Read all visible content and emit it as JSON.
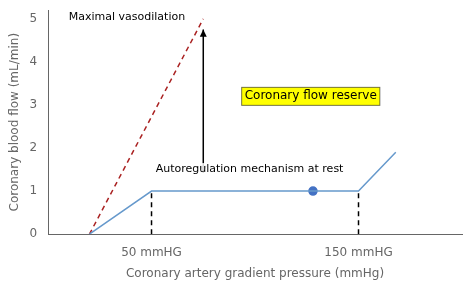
{
  "chart_data": {
    "type": "line",
    "xlabel": "Coronary artery gradient pressure (mmHg)",
    "ylabel": "Coronary blood flow (mL/min)",
    "xlim": [
      0,
      200
    ],
    "ylim": [
      0,
      5.2
    ],
    "xticks": [
      {
        "value": 50,
        "label": "50 mmHG"
      },
      {
        "value": 150,
        "label": "150 mmHG"
      }
    ],
    "yticks": [
      0,
      1,
      2,
      3,
      4,
      5
    ],
    "grid": false,
    "series": [
      {
        "x": [
          20,
          50,
          150,
          168
        ],
        "values": [
          0,
          1.0,
          1.0,
          1.9
        ],
        "color": "#6699cc",
        "line_style": "solid"
      },
      {
        "x": [
          20,
          75
        ],
        "values": [
          0,
          5.0
        ],
        "color": "#aa2222",
        "line_style": "dashed"
      },
      {
        "x": [
          50,
          50
        ],
        "values": [
          0,
          1.0
        ],
        "color": "#000000",
        "line_style": "dashed"
      },
      {
        "x": [
          150,
          150
        ],
        "values": [
          0,
          1.0
        ],
        "color": "#000000",
        "line_style": "dashed"
      },
      {
        "type": "scatter",
        "x": [
          128
        ],
        "values": [
          1.0
        ],
        "color": "#4472c4",
        "marker": "circle"
      },
      {
        "type": "arrow",
        "x": [
          75,
          75
        ],
        "values": [
          1.42,
          4.75
        ],
        "color": "#000000",
        "line_style": "solid"
      }
    ],
    "annotations": [
      {
        "text": "Maximal vasodilation",
        "x": 10,
        "y": 5.05
      },
      {
        "text": "Autoregulation mechanism at rest",
        "x": 52,
        "y": 1.5
      },
      {
        "text": "Coronary flow reserve",
        "x": 95,
        "y": 3.2,
        "color": "#ffff00"
      }
    ]
  }
}
